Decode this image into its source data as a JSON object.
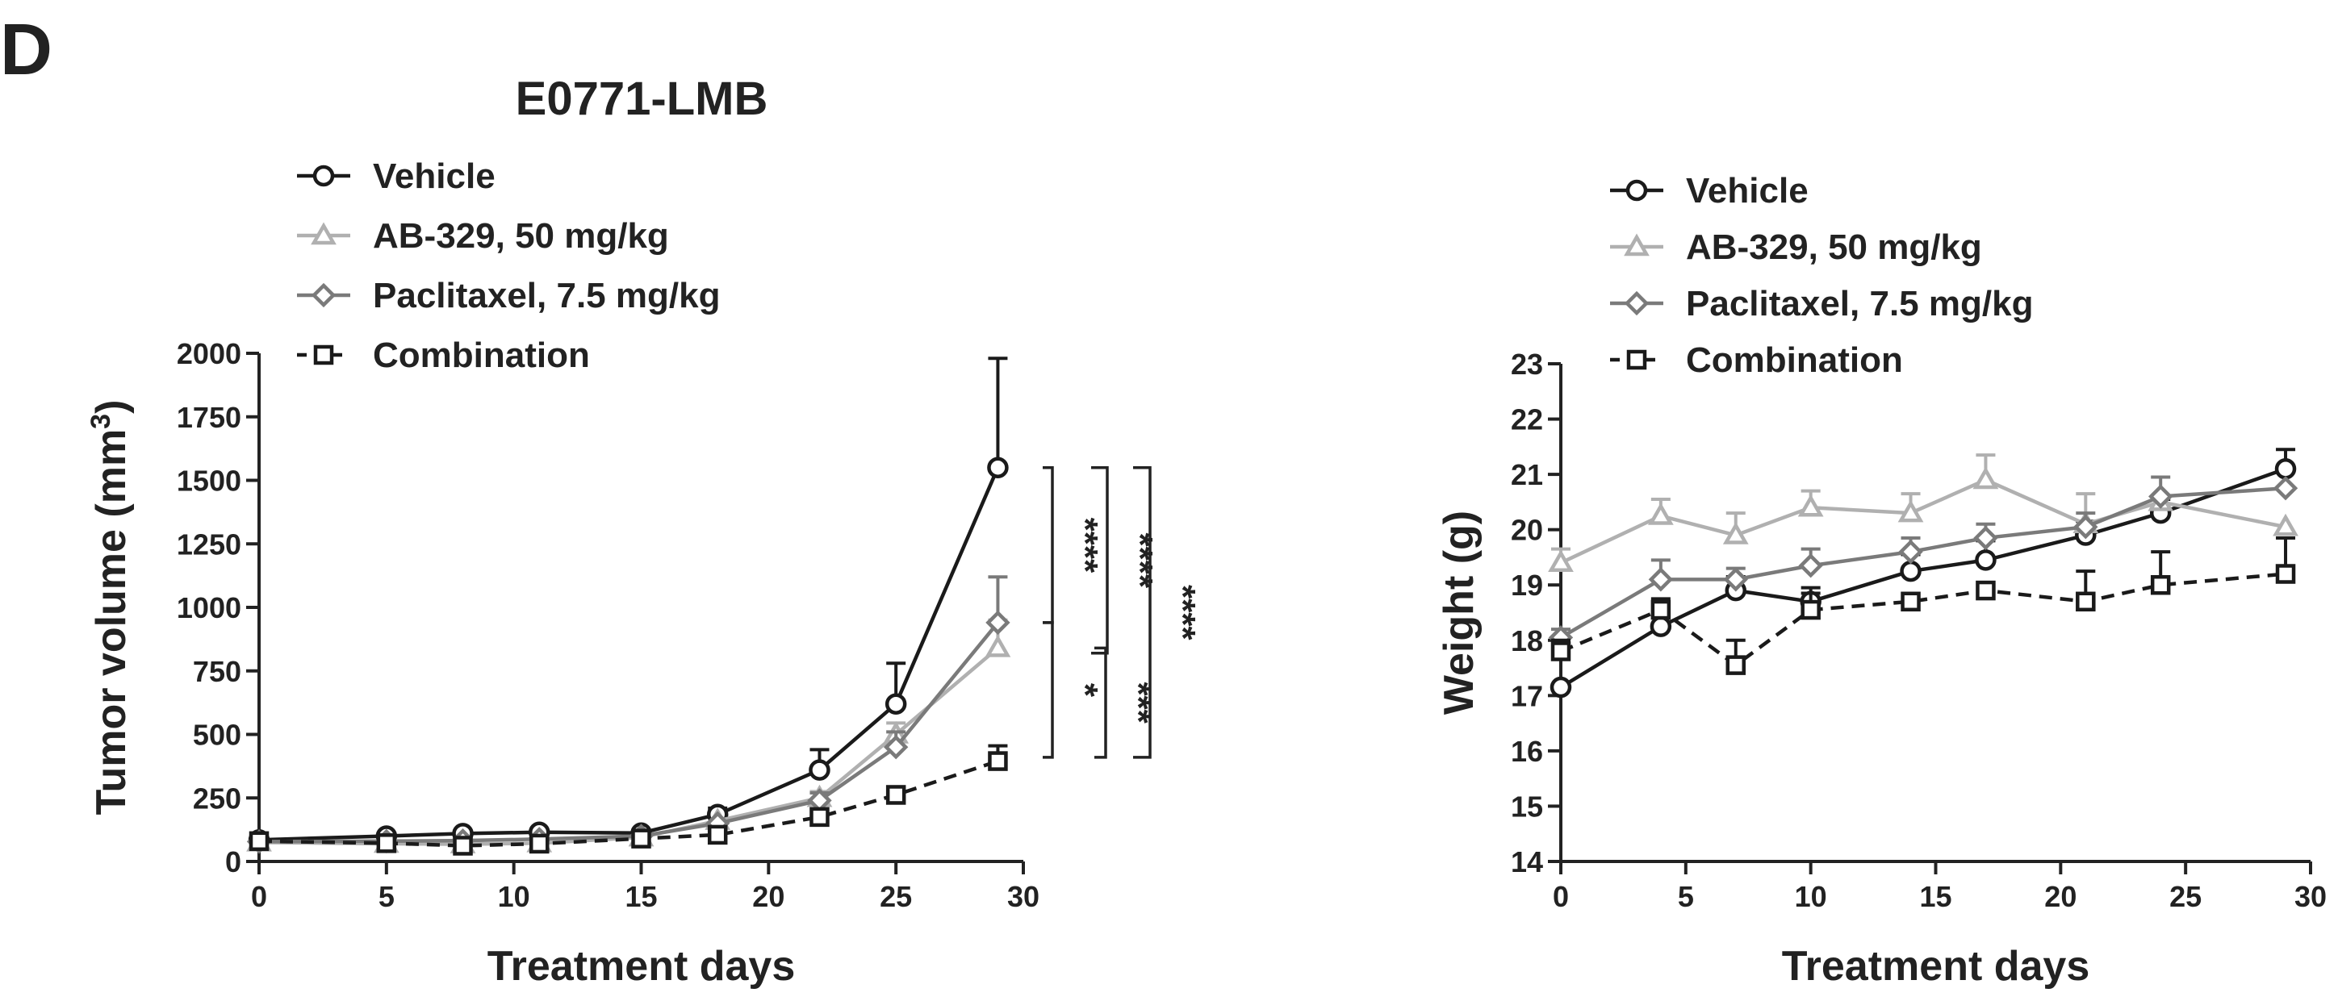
{
  "panel_label": "D",
  "chart_data": [
    {
      "type": "line",
      "title": "E0771-LMB",
      "xlabel": "Treatment days",
      "ylabel": "Tumor volume (mm",
      "ylabel_superscript": "3",
      "ylabel_suffix": ")",
      "xlim": [
        0,
        30
      ],
      "ylim": [
        0,
        2000
      ],
      "xticks": [
        0,
        5,
        10,
        15,
        20,
        25,
        30
      ],
      "yticks": [
        0,
        250,
        500,
        750,
        1000,
        1250,
        1500,
        1750,
        2000
      ],
      "grid": false,
      "legend_position": "top-left",
      "series": [
        {
          "name": "Vehicle",
          "color": "#1a1a1a",
          "marker": "circle",
          "dash": "solid",
          "x": [
            0,
            5,
            8,
            11,
            15,
            18,
            22,
            25,
            29
          ],
          "y": [
            85,
            100,
            110,
            115,
            112,
            185,
            360,
            620,
            1550
          ],
          "err": [
            0,
            0,
            0,
            0,
            0,
            25,
            80,
            160,
            430
          ]
        },
        {
          "name": "AB-329, 50 mg/kg",
          "color": "#b0b0b0",
          "marker": "triangle",
          "dash": "solid",
          "x": [
            0,
            5,
            8,
            11,
            15,
            18,
            22,
            25,
            29
          ],
          "y": [
            75,
            70,
            68,
            72,
            95,
            160,
            250,
            500,
            840
          ],
          "err": [
            0,
            0,
            0,
            0,
            0,
            0,
            25,
            45,
            110
          ]
        },
        {
          "name": "Paclitaxel, 7.5 mg/kg",
          "color": "#7a7a7a",
          "marker": "diamond",
          "dash": "solid",
          "x": [
            0,
            5,
            8,
            11,
            15,
            18,
            22,
            25,
            29
          ],
          "y": [
            78,
            80,
            82,
            88,
            100,
            150,
            240,
            450,
            940
          ],
          "err": [
            0,
            0,
            0,
            0,
            0,
            0,
            30,
            60,
            180
          ]
        },
        {
          "name": "Combination",
          "color": "#1a1a1a",
          "marker": "square",
          "dash": "dashed",
          "x": [
            0,
            5,
            8,
            11,
            15,
            18,
            22,
            25,
            29
          ],
          "y": [
            80,
            72,
            62,
            70,
            90,
            105,
            175,
            262,
            395
          ],
          "err": [
            0,
            0,
            0,
            0,
            0,
            0,
            0,
            0,
            60
          ]
        }
      ],
      "significance": [
        {
          "from": "Vehicle",
          "to": "Paclitaxel, 7.5 mg/kg",
          "label": "****",
          "y_top": 1550,
          "y_bottom": 940
        },
        {
          "from": "Paclitaxel, 7.5 mg/kg",
          "to": "Combination",
          "label": "*",
          "y_top": 940,
          "y_bottom": 410
        },
        {
          "from": "AB-329, 50 mg/kg",
          "to": "Combination",
          "label": "***",
          "y_top": 840,
          "y_bottom": 410
        },
        {
          "from": "Vehicle",
          "to": "AB-329, 50 mg/kg",
          "label": "****",
          "y_top": 1550,
          "y_bottom": 820
        },
        {
          "from": "Vehicle",
          "to": "Combination",
          "label": "****",
          "y_top": 1550,
          "y_bottom": 410
        }
      ]
    },
    {
      "type": "line",
      "title": "",
      "xlabel": "Treatment days",
      "ylabel": "Weight (g)",
      "xlim": [
        0,
        30
      ],
      "ylim": [
        14,
        23
      ],
      "xticks": [
        0,
        5,
        10,
        15,
        20,
        25,
        30
      ],
      "yticks": [
        14,
        15,
        16,
        17,
        18,
        19,
        20,
        21,
        22,
        23
      ],
      "grid": false,
      "legend_position": "top-left",
      "series": [
        {
          "name": "Vehicle",
          "color": "#1a1a1a",
          "marker": "circle",
          "dash": "solid",
          "x": [
            0,
            4,
            7,
            10,
            14,
            17,
            21,
            24,
            29
          ],
          "y": [
            17.15,
            18.25,
            18.9,
            18.7,
            19.25,
            19.45,
            19.9,
            20.3,
            21.1
          ],
          "err": [
            0,
            0,
            0.25,
            0.25,
            0.3,
            0.35,
            0.25,
            0.25,
            0.35
          ]
        },
        {
          "name": "AB-329, 50 mg/kg",
          "color": "#b0b0b0",
          "marker": "triangle",
          "dash": "solid",
          "x": [
            0,
            4,
            7,
            10,
            14,
            17,
            21,
            24,
            29
          ],
          "y": [
            19.4,
            20.25,
            19.9,
            20.4,
            20.3,
            20.9,
            20.1,
            20.5,
            20.05
          ],
          "err": [
            0.25,
            0.3,
            0.4,
            0.3,
            0.35,
            0.45,
            0.55,
            0,
            0
          ]
        },
        {
          "name": "Paclitaxel, 7.5 mg/kg",
          "color": "#7a7a7a",
          "marker": "diamond",
          "dash": "solid",
          "x": [
            0,
            4,
            7,
            10,
            14,
            17,
            21,
            24,
            29
          ],
          "y": [
            18.05,
            19.1,
            19.1,
            19.35,
            19.6,
            19.85,
            20.05,
            20.6,
            20.75
          ],
          "err": [
            0.15,
            0.35,
            0.2,
            0.3,
            0.25,
            0.25,
            0.25,
            0.35,
            0
          ]
        },
        {
          "name": "Combination",
          "color": "#1a1a1a",
          "marker": "square",
          "dash": "dashed",
          "x": [
            0,
            4,
            7,
            10,
            14,
            17,
            21,
            24,
            29
          ],
          "y": [
            17.8,
            18.55,
            17.55,
            18.55,
            18.7,
            18.9,
            18.7,
            19.0,
            19.2
          ],
          "err": [
            0.2,
            0.2,
            0.45,
            0.3,
            0,
            0,
            0.55,
            0.6,
            0.65
          ]
        }
      ]
    }
  ]
}
